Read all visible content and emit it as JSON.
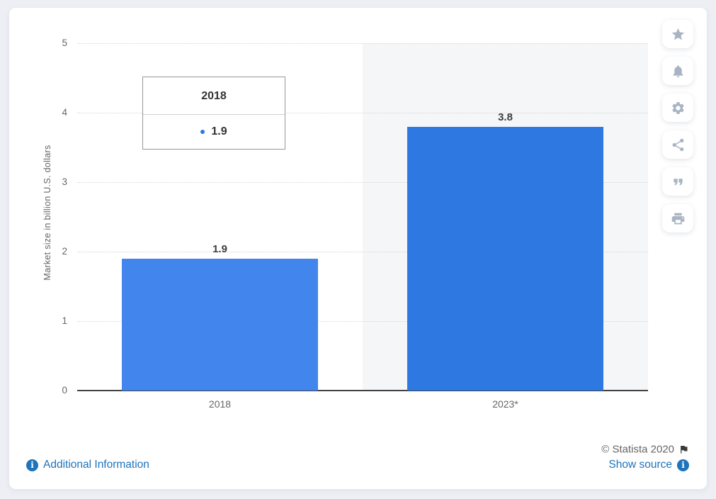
{
  "chart_data": {
    "type": "bar",
    "categories": [
      "2018",
      "2023*"
    ],
    "values": [
      1.9,
      3.8
    ],
    "value_labels": [
      "1.9",
      "3.8"
    ],
    "title": "",
    "xlabel": "",
    "ylabel": "Market size in billion U.S. dollars",
    "ylim": [
      0,
      5
    ],
    "yticks": [
      0,
      1,
      2,
      3,
      4,
      5
    ],
    "bar_colors": [
      "#4285ec",
      "#2e78e2"
    ],
    "highlighted_category_index": 1,
    "grid": "dotted horizontal",
    "legend": "none"
  },
  "tooltip": {
    "title": "2018",
    "value": "1.9",
    "marker_color": "#2e78e2"
  },
  "toolbar": {
    "buttons": [
      {
        "id": "favorite-button",
        "icon": "star-icon"
      },
      {
        "id": "alert-button",
        "icon": "bell-icon"
      },
      {
        "id": "settings-button",
        "icon": "gear-icon"
      },
      {
        "id": "share-button",
        "icon": "share-icon"
      },
      {
        "id": "cite-button",
        "icon": "quote-icon"
      },
      {
        "id": "print-button",
        "icon": "printer-icon"
      }
    ]
  },
  "footer": {
    "additional_info": "Additional Information",
    "copyright": "© Statista 2020",
    "show_source": "Show source"
  },
  "colors": {
    "page_bg": "#edeff4",
    "card_bg": "#ffffff",
    "band_bg": "#f5f6f8",
    "grid": "#d6d6d6",
    "axis": "#424242",
    "text_gray": "#666666",
    "label_dark": "#3d3d3d",
    "link_blue": "#1e73ba",
    "icon_gray": "#a9b4c3",
    "tooltip_border": "#979797"
  }
}
